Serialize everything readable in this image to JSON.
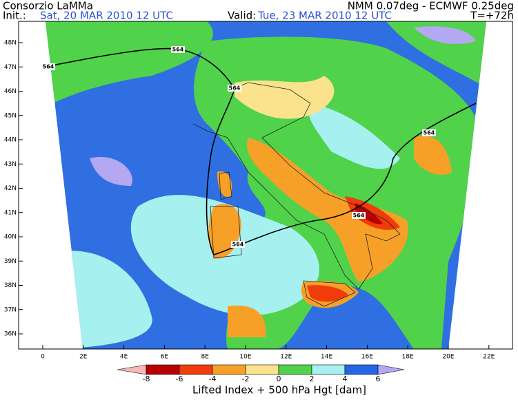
{
  "header": {
    "title": "Consorzio LaMMa",
    "model": "NMM 0.07deg - ECMWF 0.25deg",
    "init_label": "Init.:",
    "init": "Sat, 20 MAR 2010  12 UTC",
    "valid_label": "Valid:",
    "valid": "Tue, 23 MAR 2010  12 UTC",
    "lead": "T=+72h"
  },
  "map": {
    "lat_labels": [
      "48N",
      "47N",
      "46N",
      "45N",
      "44N",
      "43N",
      "42N",
      "41N",
      "40N",
      "39N",
      "38N",
      "37N",
      "36N"
    ],
    "lon_labels": [
      "0",
      "2E",
      "4E",
      "6E",
      "8E",
      "10E",
      "12E",
      "14E",
      "16E",
      "18E",
      "20E",
      "22E"
    ],
    "contour_labels": [
      "564",
      "564",
      "564",
      "564",
      "564",
      "564"
    ]
  },
  "colorbar": {
    "ticks": [
      "-8",
      "-6",
      "-4",
      "-2",
      "0",
      "2",
      "4",
      "6"
    ],
    "colors": [
      "#f7b8b8",
      "#b80000",
      "#f03c0a",
      "#f7a028",
      "#fae38c",
      "#50d24a",
      "#a6f0f0",
      "#2466e6",
      "#b4a8f2"
    ],
    "label": "Lifted Index + 500 hPa Hgt [dam]"
  }
}
